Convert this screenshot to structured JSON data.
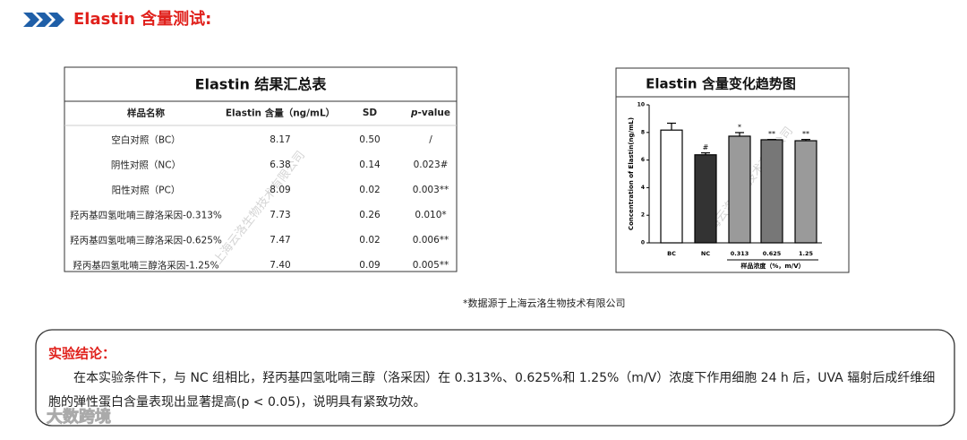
{
  "header": {
    "title": "Elastin 含量测试:"
  },
  "table": {
    "title": "Elastin 结果汇总表",
    "columns": [
      "样品名称",
      "Elastin 含量（ng/mL）",
      "SD",
      "p-value"
    ],
    "rows": [
      [
        "空白对照（BC）",
        "8.17",
        "0.50",
        "/"
      ],
      [
        "阴性对照（NC）",
        "6.38",
        "0.14",
        "0.023#"
      ],
      [
        "阳性对照（PC）",
        "8.09",
        "0.02",
        "0.003**"
      ],
      [
        "羟丙基四氢吡喃三醇洛采因-0.313%",
        "7.73",
        "0.26",
        "0.010*"
      ],
      [
        "羟丙基四氢吡喃三醇洛采因-0.625%",
        "7.47",
        "0.02",
        "0.006**"
      ],
      [
        "羟丙基四氢吡喃三醇洛采因-1.25%",
        "7.40",
        "0.09",
        "0.005**"
      ]
    ]
  },
  "chart_data": {
    "type": "bar",
    "title": "Elastin 含量变化趋势图",
    "categories": [
      "BC",
      "NC",
      "0.313",
      "0.625",
      "1.25"
    ],
    "values": [
      8.17,
      6.38,
      7.73,
      7.47,
      7.4
    ],
    "errors": [
      0.5,
      0.14,
      0.26,
      0.02,
      0.09
    ],
    "colors": [
      "#ffffff",
      "#333333",
      "#9a9a9a",
      "#777777",
      "#9a9a9a"
    ],
    "significance": [
      null,
      "#",
      "*",
      "**",
      "**"
    ],
    "ylim": [
      0,
      10
    ],
    "yticks": [
      0,
      2,
      4,
      6,
      8,
      10
    ],
    "y_label": "Concentration of Elastin(ng/mL)",
    "x_label": "样品浓度（%，m/V）"
  },
  "watermark": "上海云洛生物技术有限公司",
  "source_note": "*数据源于上海云洛生物技术有限公司",
  "conclusion": {
    "title": "实验结论：",
    "text": "在本实验条件下，与 NC 组相比，羟丙基四氢吡喃三醇（洛采因）在 0.313%、0.625%和 1.25%（m/V）浓度下作用细胞 24 h 后，UVA 辐射后成纤维细胞的弹性蛋白含量表现出显著提高(p < 0.05)，说明具有紧致功效。"
  },
  "corner_mark": "大数跨境"
}
